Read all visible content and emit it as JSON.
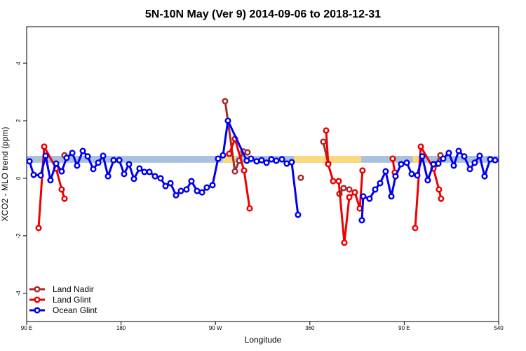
{
  "chart_data": {
    "type": "line",
    "title": "5N-10N May (Ver 9)   2014-09-06 to 2018-12-31",
    "xlabel": "Longitude",
    "ylabel": "XCO2 - MLO trend (ppm)",
    "xlim": [
      90,
      540
    ],
    "ylim": [
      -4.98,
      5.27
    ],
    "xticks": [
      {
        "value": 90,
        "label": "90 E"
      },
      180,
      {
        "value": 270,
        "label": "90 W"
      },
      360,
      {
        "value": 450,
        "label": "90 E"
      },
      540
    ],
    "yticks": [
      -4,
      -2,
      0,
      2,
      4
    ],
    "legend": "bottom-left",
    "band": {
      "ylim": [
        0.54,
        0.78
      ],
      "color": "#a9c1dd",
      "land_color": "#fcd97f",
      "land_ranges": [
        [
          277,
          289
        ],
        [
          345,
          409
        ],
        [
          458,
          469
        ]
      ]
    },
    "series": [
      {
        "name": "Land Nadir",
        "color": "#a52a2a",
        "x": [
          126.1,
          null,
          279.2,
          288.6,
          292.6,
          296.6,
          300.6,
          null,
          351.4,
          null,
          372.8,
          377.5,
          null,
          388.2,
          392.2,
          397.6,
          null,
          480.5,
          484.5
        ],
        "values": [
          0.8,
          null,
          2.68,
          0.24,
          0.61,
          0.93,
          0.9,
          null,
          0.02,
          null,
          1.27,
          0.51,
          null,
          -0.54,
          -0.34,
          -0.39,
          null,
          0.49,
          0.8
        ]
      },
      {
        "name": "Land Glint",
        "color": "#ee0000",
        "x": [
          101.4,
          106.7,
          118.1,
          123.4,
          126.1,
          null,
          283.2,
          288.6,
          297.3,
          302.6,
          null,
          375.5,
          377.5,
          382.2,
          387.5,
          392.9,
          397.6,
          402.9,
          407.6,
          410.2,
          null,
          439.0,
          441.0,
          null,
          460.4,
          465.8,
          477.8,
          483.1,
          485.1
        ],
        "values": [
          -1.73,
          1.1,
          0.34,
          -0.39,
          -0.71,
          null,
          0.85,
          1.37,
          0.27,
          -1.05,
          null,
          1.66,
          0.49,
          -0.1,
          -0.1,
          -2.24,
          -0.66,
          -0.49,
          -1.05,
          0.27,
          null,
          0.68,
          0.2,
          null,
          -1.73,
          1.1,
          0.34,
          -0.39,
          -0.71
        ]
      },
      {
        "name": "Ocean Glint",
        "color": "#0000ee",
        "x": [
          92.7,
          96.7,
          103.4,
          108.1,
          112.7,
          118.1,
          123.4,
          128.1,
          133.5,
          138.1,
          143.5,
          148.2,
          153.5,
          158.2,
          162.9,
          167.6,
          172.9,
          178.3,
          182.9,
          187.6,
          192.3,
          197.6,
          202.3,
          207.0,
          212.4,
          217.7,
          222.4,
          227.1,
          232.4,
          237.1,
          242.4,
          247.1,
          252.5,
          257.2,
          261.8,
          267.2,
          272.5,
          277.2,
          281.9,
          299.9,
          303.9,
          309.3,
          314.0,
          318.7,
          323.3,
          328.0,
          333.4,
          338.0,
          342.7,
          348.7,
          null,
          409.6,
          410.9,
          416.9,
          422.3,
          427.0,
          432.3,
          437.7,
          441.7,
          447.0,
          452.4,
          457.1,
          462.4,
          467.1,
          472.4,
          477.8,
          482.5,
          487.1,
          492.5,
          497.2,
          501.9,
          507.2,
          512.6,
          517.2,
          521.9,
          526.6,
          531.9,
          536.6
        ],
        "values": [
          0.59,
          0.12,
          0.1,
          0.78,
          -0.07,
          0.51,
          0.24,
          0.71,
          0.88,
          0.44,
          0.95,
          0.76,
          0.32,
          0.54,
          0.78,
          0.07,
          0.63,
          0.63,
          0.15,
          0.49,
          -0.02,
          0.34,
          0.22,
          0.22,
          0.07,
          0,
          -0.27,
          -0.17,
          -0.59,
          -0.44,
          -0.39,
          -0.1,
          -0.44,
          -0.49,
          -0.32,
          -0.24,
          0.68,
          0.8,
          2.0,
          0.61,
          0.68,
          0.59,
          0.63,
          0.54,
          0.66,
          0.61,
          0.66,
          0.51,
          0.56,
          -1.27,
          null,
          -1.46,
          -0.63,
          -0.71,
          -0.39,
          -0.17,
          0.24,
          -0.63,
          0.07,
          0.49,
          0.54,
          0.15,
          0.1,
          0.76,
          -0.07,
          0.49,
          0.51,
          0.68,
          0.88,
          0.44,
          0.95,
          0.76,
          0.32,
          0.54,
          0.78,
          0.07,
          0.66,
          0.63
        ]
      }
    ]
  }
}
